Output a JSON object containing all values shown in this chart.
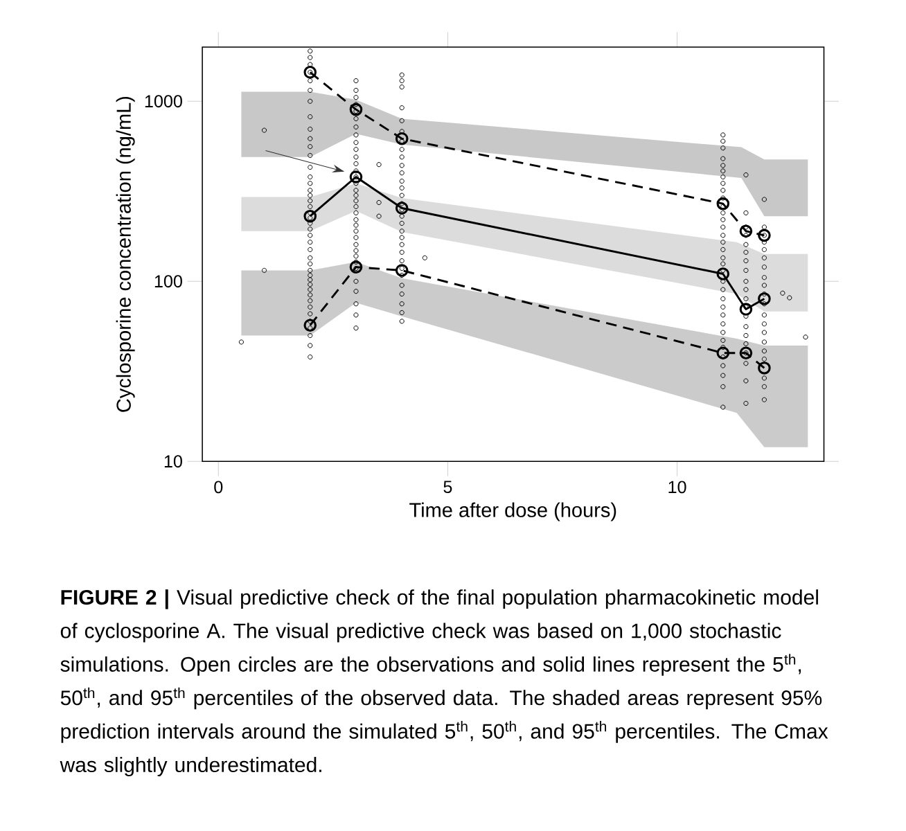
{
  "chart_data": {
    "type": "scatter",
    "xlabel": "Time after dose (hours)",
    "ylabel": "Cyclosporine concentration (ng/mL)",
    "log": "y",
    "xlim": [
      -0.35,
      13.2
    ],
    "ylim": [
      10,
      2000
    ],
    "xticks": [
      0,
      5,
      10
    ],
    "yticks": [
      10,
      100,
      1000
    ],
    "grid": false,
    "series": [
      {
        "type": "area",
        "color": "#c8c8c8",
        "x": [
          0.5,
          2,
          3,
          4,
          11.4,
          11.9,
          12.85
        ],
        "values": [
          null,
          null,
          null,
          null,
          null,
          null,
          null
        ],
        "lower": [
          490,
          490,
          660,
          575,
          375,
          230,
          230
        ],
        "upper": [
          1130,
          1130,
          1020,
          800,
          556,
          475,
          475
        ]
      },
      {
        "type": "area",
        "color": "#dcdcdc",
        "x": [
          0.5,
          2,
          3,
          4,
          11.3,
          11.9,
          12.85
        ],
        "values": [
          null,
          null,
          null,
          null,
          null,
          null,
          null
        ],
        "lower": [
          190,
          190,
          246,
          188,
          85,
          68,
          68
        ],
        "upper": [
          294,
          294,
          350,
          290,
          165,
          142,
          142
        ]
      },
      {
        "type": "area",
        "color": "#cbcbcb",
        "x": [
          0.5,
          2,
          3,
          4,
          11.3,
          11.9,
          12.85
        ],
        "values": [
          null,
          null,
          null,
          null,
          null,
          null,
          null
        ],
        "lower": [
          50,
          50,
          76,
          64,
          18.6,
          12,
          12
        ],
        "upper": [
          115,
          115,
          128,
          104,
          48,
          44,
          44
        ]
      },
      {
        "marker": "circle",
        "color": "#000000",
        "x": [
          2,
          2,
          2,
          2,
          2,
          2,
          2,
          2,
          2,
          2,
          2,
          2,
          2,
          2,
          2,
          2,
          2,
          2,
          2,
          2,
          2,
          2,
          2,
          2,
          2,
          2,
          2,
          2,
          2,
          2,
          2,
          2,
          2,
          2,
          2,
          2,
          2,
          2,
          2,
          2,
          2,
          2,
          3,
          3,
          3,
          3,
          3,
          3,
          3,
          3,
          3,
          3,
          3,
          3,
          3,
          3,
          3,
          3,
          3,
          3,
          3,
          3,
          3,
          3,
          3,
          3,
          3,
          3,
          3,
          3,
          3,
          3,
          3,
          3,
          3,
          3,
          4,
          4,
          4,
          4,
          4,
          4,
          4,
          4,
          4,
          4,
          4,
          4,
          4,
          4,
          4,
          4,
          4,
          4,
          4,
          4,
          4,
          4,
          4,
          4,
          4,
          4,
          4,
          4,
          4,
          4,
          11,
          11,
          11,
          11,
          11,
          11,
          11,
          11,
          11,
          11,
          11,
          11,
          11,
          11,
          11,
          11,
          11,
          11,
          11,
          11,
          11,
          11,
          11,
          11,
          11,
          11,
          11,
          11,
          11,
          11,
          11,
          11,
          11,
          11,
          11.5,
          11.5,
          11.5,
          11.5,
          11.5,
          11.5,
          11.5,
          11.5,
          11.5,
          11.5,
          11.5,
          11.5,
          11.5,
          11.5,
          11.5,
          11.5,
          11.5,
          11.5,
          11.5,
          11.5,
          11.9,
          11.9,
          11.9,
          11.9,
          11.9,
          11.9,
          11.9,
          11.9,
          11.9,
          11.9,
          11.9,
          11.9,
          11.9,
          11.9,
          11.9,
          11.9,
          11.9,
          11.9,
          11.9,
          11.9,
          0.5,
          1,
          1,
          3.5,
          3.5,
          3.5,
          4.5,
          12.3,
          12.45,
          12.8
        ],
        "values": [
          1900,
          1750,
          1600,
          1450,
          1300,
          1150,
          1000,
          820,
          700,
          620,
          560,
          500,
          430,
          380,
          350,
          320,
          300,
          280,
          260,
          240,
          225,
          210,
          195,
          180,
          165,
          150,
          135,
          125,
          115,
          108,
          102,
          96,
          90,
          84,
          78,
          72,
          66,
          60,
          55,
          50,
          44,
          38,
          1300,
          1150,
          1050,
          960,
          880,
          800,
          720,
          650,
          590,
          540,
          490,
          450,
          410,
          380,
          350,
          320,
          300,
          280,
          260,
          240,
          220,
          205,
          190,
          175,
          160,
          148,
          138,
          128,
          118,
          100,
          88,
          75,
          65,
          55,
          1400,
          1300,
          1200,
          920,
          780,
          680,
          600,
          540,
          490,
          440,
          400,
          360,
          330,
          300,
          270,
          250,
          230,
          210,
          190,
          175,
          160,
          145,
          130,
          118,
          108,
          95,
          85,
          75,
          67,
          60,
          650,
          600,
          550,
          480,
          440,
          410,
          380,
          350,
          320,
          290,
          260,
          240,
          220,
          200,
          180,
          165,
          150,
          135,
          125,
          115,
          100,
          90,
          80,
          72,
          65,
          58,
          52,
          47,
          43,
          38,
          34,
          30,
          26,
          20,
          390,
          240,
          200,
          180,
          160,
          145,
          130,
          115,
          100,
          90,
          80,
          72,
          64,
          56,
          50,
          45,
          40,
          35,
          28,
          21,
          285,
          200,
          180,
          165,
          150,
          135,
          120,
          105,
          95,
          85,
          75,
          65,
          58,
          52,
          46,
          41,
          37,
          29,
          26,
          22,
          46,
          115,
          690,
          445,
          274,
          230,
          135,
          86,
          81,
          49
        ]
      },
      {
        "type": "line",
        "line_style": "dashed",
        "marker": "circle",
        "color": "#000000",
        "x": [
          2,
          3,
          4,
          11,
          11.5,
          11.9
        ],
        "values": [
          57,
          120,
          115,
          40,
          40,
          33
        ]
      },
      {
        "type": "line",
        "line_style": "solid",
        "marker": "circle",
        "color": "#000000",
        "x": [
          2,
          3,
          4,
          11,
          11.5,
          11.9
        ],
        "values": [
          230,
          380,
          255,
          110,
          70,
          80
        ]
      },
      {
        "type": "line",
        "line_style": "dashed",
        "marker": "circle",
        "color": "#000000",
        "x": [
          2,
          3,
          4,
          11,
          11.5,
          11.9
        ],
        "values": [
          1450,
          900,
          620,
          270,
          190,
          180
        ]
      }
    ],
    "annotations": [
      "**FIGURE 2 |** Visual predictive check of the final population pharmacokinetic model of cyclosporine A. The visual predictive check was based on 1,000 stochastic simulations. Open circles are the observations and solid lines represent the 5$^{th}$, 50$^{th}$, and 95$^{th}$ percentiles of the observed data. The shaded areas represent 95% prediction intervals around the simulated 5$^{th}$, 50$^{th}$, and 95$^{th}$ percentiles. The Cmax was slightly underestimated."
    ]
  }
}
